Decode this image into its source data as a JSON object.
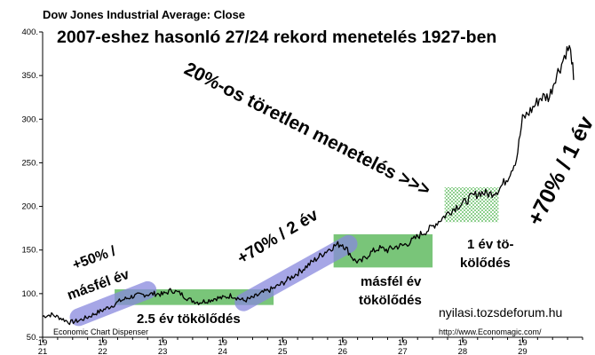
{
  "chart_data": {
    "type": "line",
    "title": "Dow Jones Industrial Average: Close",
    "headline": "2007-eshez hasonló 27/24 rekord menetelés 1927-ben",
    "xlabel": "",
    "ylabel": "",
    "xlim": [
      1921.0,
      1930.0
    ],
    "ylim": [
      50,
      400
    ],
    "y_ticks": [
      50,
      100,
      150,
      200,
      250,
      300,
      350,
      400
    ],
    "y_tick_labels": [
      "50.",
      "100.",
      "150.",
      "200.",
      "250.",
      "300.",
      "350.",
      "400."
    ],
    "x_ticks": [
      1921,
      1922,
      1923,
      1924,
      1925,
      1926,
      1927,
      1928,
      1929
    ],
    "x_tick_top": [
      "19",
      "19",
      "19",
      "19",
      "19",
      "19",
      "19",
      "19",
      "19"
    ],
    "x_tick_bottom": [
      "21",
      "22",
      "23",
      "24",
      "25",
      "26",
      "27",
      "28",
      "29"
    ],
    "grid": false,
    "legend": "none",
    "series": [
      {
        "color": "#000000",
        "x": [
          1921.0,
          1921.15,
          1921.3,
          1921.45,
          1921.6,
          1921.75,
          1921.9,
          1922.0,
          1922.15,
          1922.3,
          1922.5,
          1922.7,
          1922.9,
          1923.0,
          1923.15,
          1923.3,
          1923.45,
          1923.6,
          1923.75,
          1923.9,
          1924.0,
          1924.15,
          1924.35,
          1924.5,
          1924.7,
          1924.85,
          1925.0,
          1925.15,
          1925.3,
          1925.45,
          1925.6,
          1925.75,
          1925.9,
          1926.0,
          1926.1,
          1926.2,
          1926.3,
          1926.45,
          1926.6,
          1926.75,
          1926.9,
          1927.0,
          1927.15,
          1927.3,
          1927.45,
          1927.6,
          1927.75,
          1927.9,
          1928.0,
          1928.15,
          1928.3,
          1928.45,
          1928.6,
          1928.75,
          1928.9,
          1929.0,
          1929.15,
          1929.3,
          1929.45,
          1929.55,
          1929.65,
          1929.72,
          1929.78,
          1929.82,
          1929.85
        ],
        "values": [
          74,
          76,
          72,
          67,
          69,
          73,
          78,
          81,
          86,
          92,
          97,
          99,
          100,
          99,
          104,
          100,
          93,
          90,
          92,
          95,
          95,
          98,
          92,
          95,
          102,
          106,
          112,
          119,
          126,
          134,
          142,
          150,
          156,
          157,
          148,
          138,
          136,
          146,
          152,
          150,
          154,
          155,
          160,
          168,
          174,
          183,
          192,
          200,
          203,
          211,
          216,
          214,
          219,
          233,
          255,
          300,
          311,
          325,
          326,
          349,
          363,
          377,
          381,
          370,
          345
        ]
      }
    ],
    "annotations": [
      {
        "text": "20%-os töretlen menetelés >>>"
      },
      {
        "text": "+70% / 1 év"
      },
      {
        "text": "1 év tö-",
        "text2": "kölődés"
      },
      {
        "text": "másfél év",
        "text2": "tökölődés"
      },
      {
        "text": "+70% / 2 év"
      },
      {
        "text": "+50% /",
        "text2": "másfél év"
      },
      {
        "text": "2.5 év tökölődés"
      },
      {
        "text": "nyilasi.tozsdeforum.hu"
      }
    ],
    "ranges": [
      {
        "kind": "consolidation",
        "color": "#5cb85c",
        "x0": 1922.2,
        "x1": 1924.85,
        "y0": 87,
        "y1": 105
      },
      {
        "kind": "consolidation",
        "color": "#5cb85c",
        "x0": 1925.85,
        "x1": 1927.5,
        "y0": 130,
        "y1": 168
      },
      {
        "kind": "consolidation",
        "color": "#5cb85c",
        "x0": 1927.7,
        "x1": 1928.6,
        "y0": 182,
        "y1": 222
      },
      {
        "kind": "trend",
        "color": "#8888dd",
        "x_start": 1921.6,
        "y_start": 73,
        "x_end": 1922.75,
        "y_end": 104
      },
      {
        "kind": "trend",
        "color": "#8888dd",
        "x_start": 1924.35,
        "y_start": 90,
        "x_end": 1926.1,
        "y_end": 157
      }
    ],
    "footer_left": "Economic Chart Dispenser",
    "footer_right": "http://www.Economagic.com/"
  }
}
